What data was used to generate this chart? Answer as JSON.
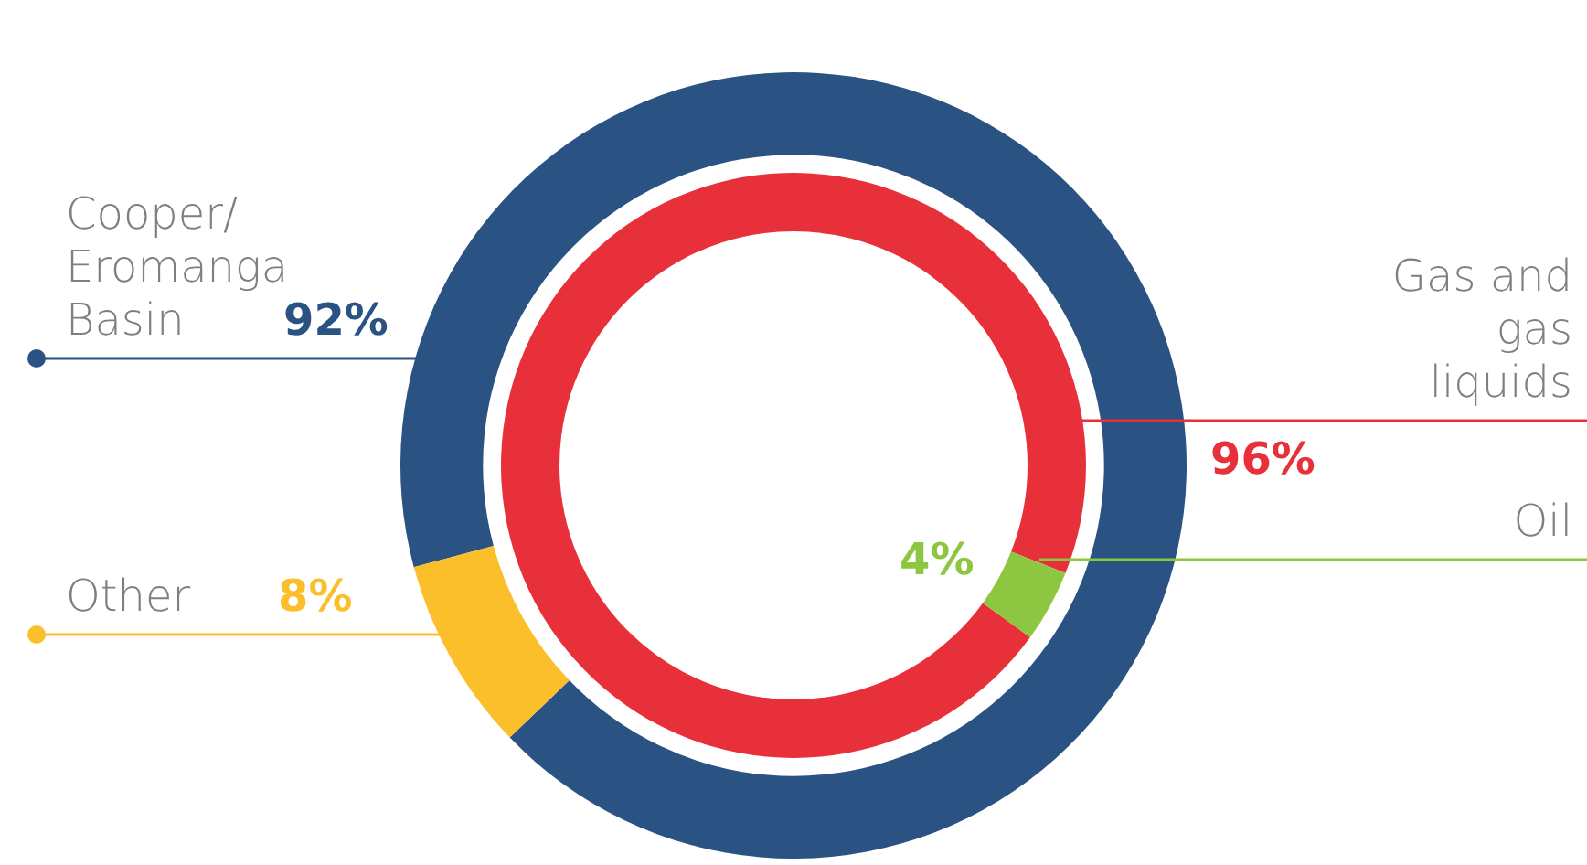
{
  "chart_data": [
    {
      "type": "donut",
      "categories": [
        "Cooper/ Eromanga Basin",
        "Other"
      ],
      "values": [
        92,
        8
      ],
      "colors": [
        "#2a5384",
        "#fbbf2c"
      ],
      "value_labels": [
        "92%",
        "8%"
      ]
    },
    {
      "type": "donut",
      "categories": [
        "Gas and gas liquids",
        "Oil"
      ],
      "values": [
        96,
        4
      ],
      "colors": [
        "#e8303a",
        "#8dc641"
      ],
      "value_labels": [
        "96%",
        "4%"
      ]
    }
  ]
}
